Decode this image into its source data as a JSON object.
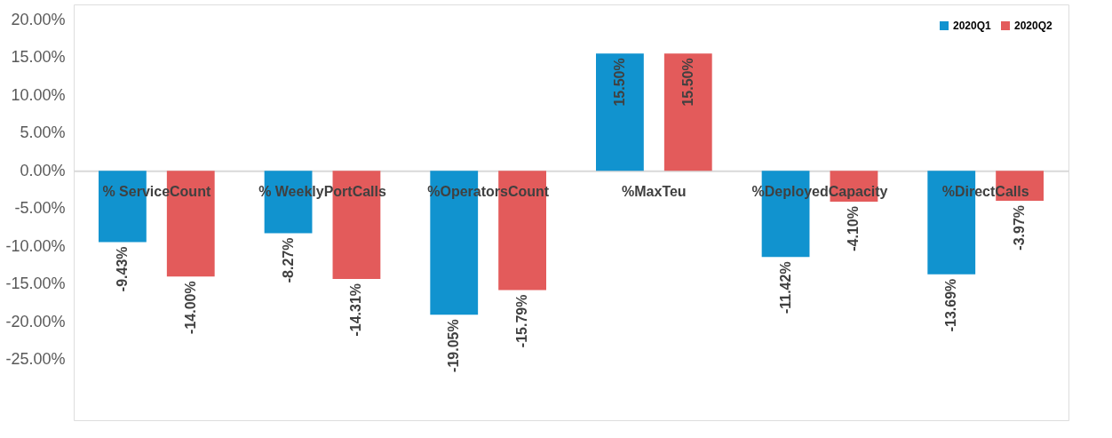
{
  "chart_data": {
    "type": "bar",
    "categories": [
      "% ServiceCount",
      "% WeeklyPortCalls",
      "%OperatorsCount",
      "%MaxTeu",
      "%DeployedCapacity",
      "%DirectCalls"
    ],
    "series": [
      {
        "name": "2020Q1",
        "color": "#1193cf",
        "values": [
          -9.43,
          -8.27,
          -19.05,
          15.5,
          -11.42,
          -13.69
        ],
        "value_labels": [
          "-9.43%",
          "-8.27%",
          "-19.05%",
          "15.50%",
          "-11.42%",
          "-13.69%"
        ]
      },
      {
        "name": "2020Q2",
        "color": "#e35b5b",
        "values": [
          -14.0,
          -14.31,
          -15.79,
          15.5,
          -4.1,
          -3.97
        ],
        "value_labels": [
          "-14.00%",
          "-14.31%",
          "-15.79%",
          "15.50%",
          "-4.10%",
          "-3.97%"
        ]
      }
    ],
    "ylim": [
      -33,
      22
    ],
    "yticks": [
      {
        "value": 20,
        "label": "20.00%"
      },
      {
        "value": 15,
        "label": "15.00%"
      },
      {
        "value": 10,
        "label": "10.00%"
      },
      {
        "value": 5,
        "label": "5.00%"
      },
      {
        "value": 0,
        "label": "0.00%"
      },
      {
        "value": -5,
        "label": "-5.00%"
      },
      {
        "value": -10,
        "label": "-10.00%"
      },
      {
        "value": -15,
        "label": "-15.00%"
      },
      {
        "value": -20,
        "label": "-20.00%"
      },
      {
        "value": -25,
        "label": "-25.00%"
      }
    ],
    "legend": "top right",
    "grid": false
  }
}
